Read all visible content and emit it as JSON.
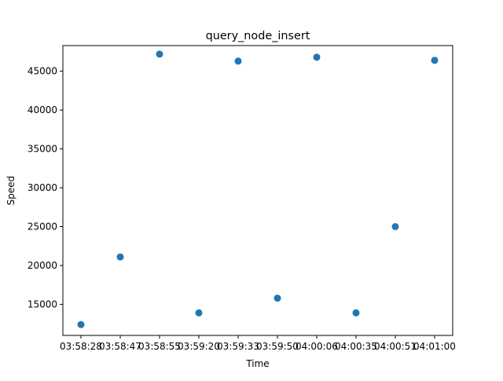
{
  "chart_data": {
    "type": "scatter",
    "title": "query_node_insert",
    "xlabel": "Time",
    "ylabel": "Speed",
    "grid": false,
    "legend": "none",
    "marker_color": "#1f77b4",
    "x_tick_labels": [
      "03:58:28",
      "03:58:47",
      "03:58:55",
      "03:59:20",
      "03:59:33",
      "03:59:50",
      "04:00:06",
      "04:00:35",
      "04:00:51",
      "04:01:00"
    ],
    "y_ticks": [
      15000,
      20000,
      25000,
      30000,
      35000,
      40000,
      45000
    ],
    "ylim": [
      11000,
      48300
    ],
    "series": [
      {
        "x": [
          "03:58:28",
          "03:58:47",
          "03:58:55",
          "03:59:20",
          "03:59:33",
          "03:59:50",
          "04:00:06",
          "04:00:35",
          "04:00:51",
          "04:01:00"
        ],
        "y": [
          12400,
          21100,
          47200,
          13900,
          46300,
          15800,
          46800,
          13900,
          25000,
          46400
        ]
      }
    ]
  }
}
